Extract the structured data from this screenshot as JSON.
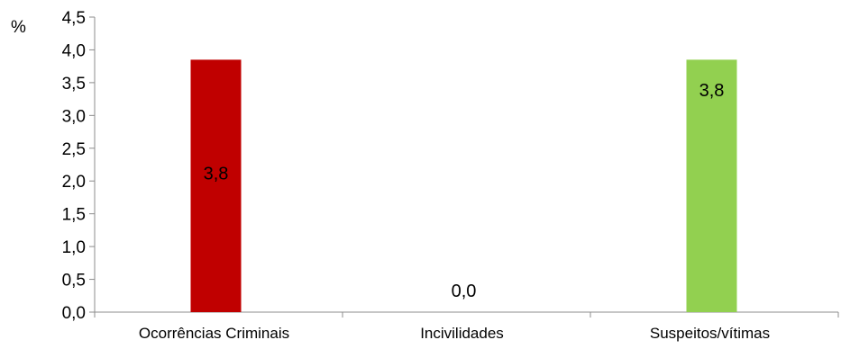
{
  "chart_data": {
    "type": "bar",
    "unit_label": "%",
    "categories": [
      "Ocorrências Criminais",
      "Incivilidades",
      "Suspeitos/vítimas"
    ],
    "values": [
      3.85,
      0.0,
      3.85
    ],
    "data_labels": [
      "3,8",
      "0,0",
      "3,8"
    ],
    "colors": [
      "#c00000",
      "#c00000",
      "#92d050"
    ],
    "ylim": [
      0,
      4.5
    ],
    "yticks": [
      0,
      0.5,
      1.0,
      1.5,
      2.0,
      2.5,
      3.0,
      3.5,
      4.0,
      4.5
    ],
    "ytick_labels": [
      "0,0",
      "0,5",
      "1,0",
      "1,5",
      "2,0",
      "2,5",
      "3,0",
      "3,5",
      "4,0",
      "4,5"
    ],
    "grid": false,
    "legend": "none"
  }
}
